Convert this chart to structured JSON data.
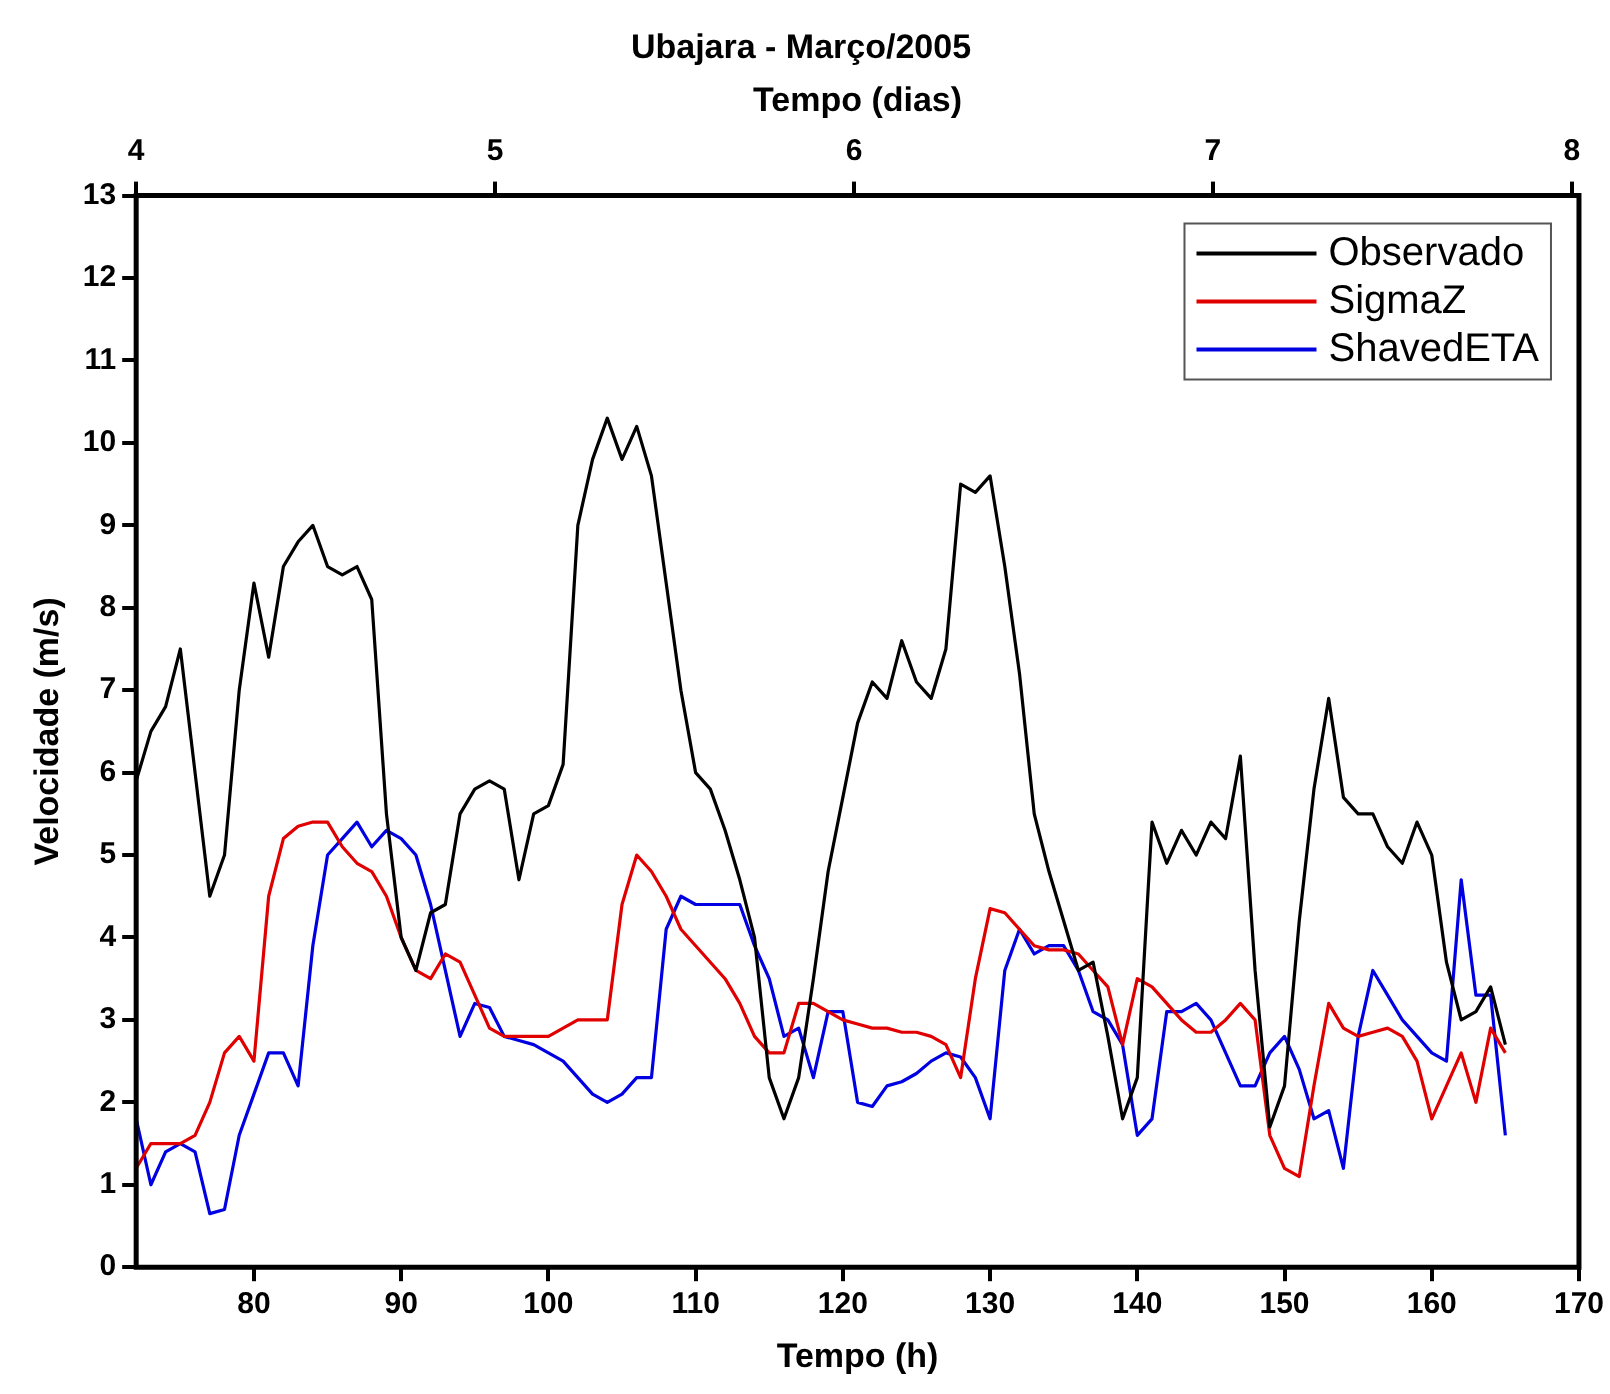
{
  "chart_data": {
    "type": "line",
    "title": "Ubajara - Março/2005",
    "xlabel": "Tempo (h)",
    "x2label": "Tempo (dias)",
    "ylabel": "Velocidade (m/s)",
    "x": [
      72,
      73,
      74,
      75,
      76,
      77,
      78,
      79,
      80,
      81,
      82,
      83,
      84,
      85,
      86,
      87,
      88,
      89,
      90,
      91,
      92,
      93,
      94,
      95,
      96,
      97,
      98,
      99,
      100,
      101,
      102,
      103,
      104,
      105,
      106,
      107,
      108,
      109,
      110,
      111,
      112,
      113,
      114,
      115,
      116,
      117,
      118,
      119,
      120,
      121,
      122,
      123,
      124,
      125,
      126,
      127,
      128,
      129,
      130,
      131,
      132,
      133,
      134,
      135,
      136,
      137,
      138,
      139,
      140,
      141,
      142,
      143,
      144,
      145,
      146,
      147,
      148,
      149,
      150,
      151,
      152,
      153,
      154,
      155,
      156,
      157,
      158,
      159,
      160,
      161,
      162,
      163,
      164,
      165
    ],
    "series": [
      {
        "name": "Observado",
        "color": "#000000",
        "values": [
          5.9,
          6.5,
          6.8,
          7.5,
          6.0,
          4.5,
          5.0,
          7.0,
          8.3,
          7.4,
          8.5,
          8.8,
          9.0,
          8.5,
          8.4,
          8.5,
          8.1,
          5.5,
          4.0,
          3.6,
          4.3,
          4.4,
          5.5,
          5.8,
          5.9,
          5.8,
          4.7,
          5.5,
          5.6,
          6.1,
          9.0,
          9.8,
          10.3,
          9.8,
          10.2,
          9.6,
          8.3,
          7.0,
          6.0,
          5.8,
          5.3,
          4.7,
          4.0,
          2.3,
          1.8,
          2.3,
          3.5,
          4.8,
          5.7,
          6.6,
          7.1,
          6.9,
          7.6,
          7.1,
          6.9,
          7.5,
          9.5,
          9.4,
          9.6,
          8.5,
          7.2,
          5.5,
          4.8,
          4.2,
          3.6,
          3.7,
          2.8,
          1.8,
          2.3,
          5.4,
          4.9,
          5.3,
          5.0,
          5.4,
          5.2,
          6.2,
          3.6,
          1.7,
          2.2,
          4.2,
          5.8,
          6.9,
          5.7,
          5.5,
          5.5,
          5.1,
          4.9,
          5.4,
          5.0,
          3.7,
          3.0,
          3.1,
          3.4,
          2.7
        ]
      },
      {
        "name": "SigmaZ",
        "color": "#e00000",
        "values": [
          1.2,
          1.5,
          1.5,
          1.5,
          1.6,
          2.0,
          2.6,
          2.8,
          2.5,
          4.5,
          5.2,
          5.35,
          5.4,
          5.4,
          5.1,
          4.9,
          4.8,
          4.5,
          4.0,
          3.6,
          3.5,
          3.8,
          3.7,
          3.3,
          2.9,
          2.8,
          2.8,
          2.8,
          2.8,
          2.9,
          3.0,
          3.0,
          3.0,
          4.4,
          5.0,
          4.8,
          4.5,
          4.1,
          3.9,
          3.7,
          3.5,
          3.2,
          2.8,
          2.6,
          2.6,
          3.2,
          3.2,
          3.1,
          3.0,
          2.95,
          2.9,
          2.9,
          2.85,
          2.85,
          2.8,
          2.7,
          2.3,
          3.5,
          4.35,
          4.3,
          4.1,
          3.9,
          3.85,
          3.85,
          3.8,
          3.6,
          3.4,
          2.7,
          3.5,
          3.4,
          3.2,
          3.0,
          2.85,
          2.85,
          3.0,
          3.2,
          3.0,
          1.6,
          1.2,
          1.1,
          2.2,
          3.2,
          2.9,
          2.8,
          2.85,
          2.9,
          2.8,
          2.5,
          1.8,
          2.2,
          2.6,
          2.0,
          2.9,
          2.6
        ]
      },
      {
        "name": "ShavedETA",
        "color": "#0000e0",
        "values": [
          1.8,
          1.0,
          1.4,
          1.5,
          1.4,
          0.65,
          0.7,
          1.6,
          2.1,
          2.6,
          2.6,
          2.2,
          3.9,
          5.0,
          5.2,
          5.4,
          5.1,
          5.3,
          5.2,
          5.0,
          4.4,
          3.6,
          2.8,
          3.2,
          3.15,
          2.8,
          2.75,
          2.7,
          2.6,
          2.5,
          2.3,
          2.1,
          2.0,
          2.1,
          2.3,
          2.3,
          4.1,
          4.5,
          4.4,
          4.4,
          4.4,
          4.4,
          3.9,
          3.5,
          2.8,
          2.9,
          2.3,
          3.1,
          3.1,
          2.0,
          1.95,
          2.2,
          2.25,
          2.35,
          2.5,
          2.6,
          2.55,
          2.3,
          1.8,
          3.6,
          4.1,
          3.8,
          3.9,
          3.9,
          3.6,
          3.1,
          3.0,
          2.7,
          1.6,
          1.8,
          3.1,
          3.1,
          3.2,
          3.0,
          2.6,
          2.2,
          2.2,
          2.6,
          2.8,
          2.4,
          1.8,
          1.9,
          1.2,
          2.8,
          3.6,
          3.3,
          3.0,
          2.8,
          2.6,
          2.5,
          4.7,
          3.3,
          3.3,
          1.6
        ]
      }
    ],
    "xlim": [
      72,
      170
    ],
    "xticks": [
      80,
      90,
      100,
      110,
      120,
      130,
      140,
      150,
      160,
      170
    ],
    "x2lim": [
      4,
      8.02
    ],
    "x2ticks": [
      4,
      5,
      6,
      7,
      8
    ],
    "ylim": [
      0,
      13
    ],
    "yticks": [
      0,
      1,
      2,
      3,
      4,
      5,
      6,
      7,
      8,
      9,
      10,
      11,
      12,
      13
    ],
    "legend": "top right",
    "marker": "none",
    "line_style": "solid"
  }
}
